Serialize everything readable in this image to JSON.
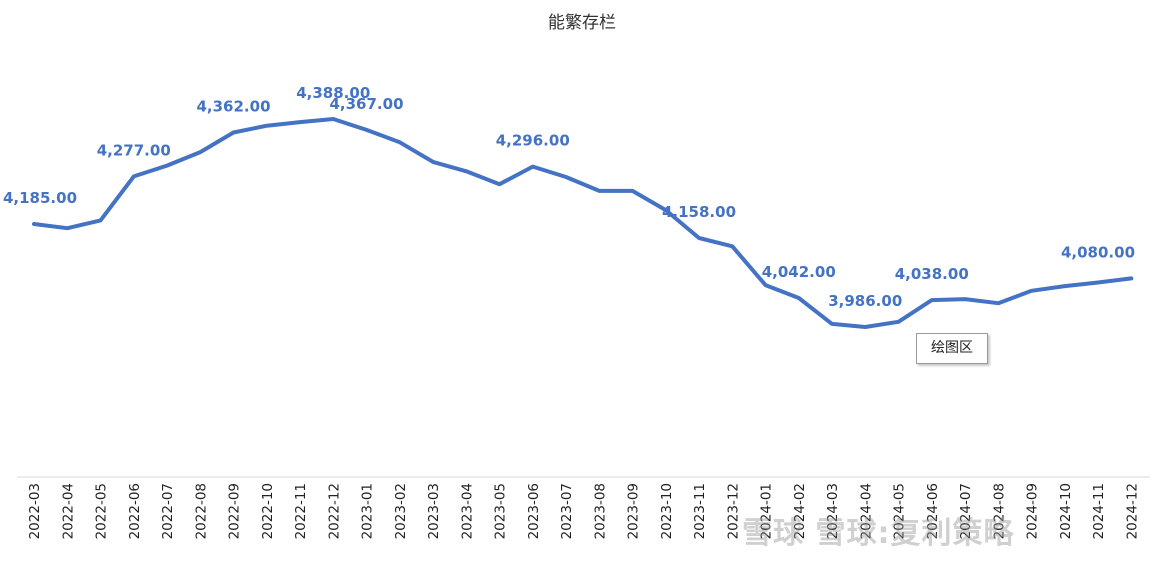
{
  "chart_data": {
    "type": "line",
    "title": "能繁存栏",
    "categories": [
      "2022-03",
      "2022-04",
      "2022-05",
      "2022-06",
      "2022-07",
      "2022-08",
      "2022-09",
      "2022-10",
      "2022-11",
      "2022-12",
      "2023-01",
      "2023-02",
      "2023-03",
      "2023-04",
      "2023-05",
      "2023-06",
      "2023-07",
      "2023-08",
      "2023-09",
      "2023-10",
      "2023-11",
      "2023-12",
      "2024-01",
      "2024-02",
      "2024-03",
      "2024-04",
      "2024-05",
      "2024-06",
      "2024-07",
      "2024-08",
      "2024-09",
      "2024-10",
      "2024-11",
      "2024-12"
    ],
    "values": [
      4185,
      4177,
      4192,
      4277,
      4298,
      4324,
      4362,
      4375,
      4382,
      4388,
      4367,
      4343,
      4305,
      4287,
      4262,
      4296,
      4276,
      4249,
      4249,
      4212,
      4158,
      4142,
      4067,
      4042,
      3992,
      3986,
      3996,
      4038,
      4040,
      4032,
      4056,
      4065,
      4072,
      4080
    ],
    "labeled_points": [
      {
        "category": "2022-03",
        "text": "4,185.00"
      },
      {
        "category": "2022-06",
        "text": "4,277.00"
      },
      {
        "category": "2022-09",
        "text": "4,362.00"
      },
      {
        "category": "2022-12",
        "text": "4,388.00"
      },
      {
        "category": "2023-01",
        "text": "4,367.00"
      },
      {
        "category": "2023-06",
        "text": "4,296.00"
      },
      {
        "category": "2023-11",
        "text": "4,158.00"
      },
      {
        "category": "2024-02",
        "text": "4,042.00"
      },
      {
        "category": "2024-04",
        "text": "3,986.00"
      },
      {
        "category": "2024-06",
        "text": "4,038.00"
      },
      {
        "category": "2024-12",
        "text": "4,080.00"
      }
    ],
    "series_color": "#4472c4",
    "xlabel": "",
    "ylabel": "",
    "y_axis_visible": false,
    "grid": false,
    "drop_lines": true,
    "legend": "none"
  },
  "tooltip": {
    "text": "绘图区"
  },
  "watermark": {
    "text": "雪球 雪球:复利策略"
  }
}
